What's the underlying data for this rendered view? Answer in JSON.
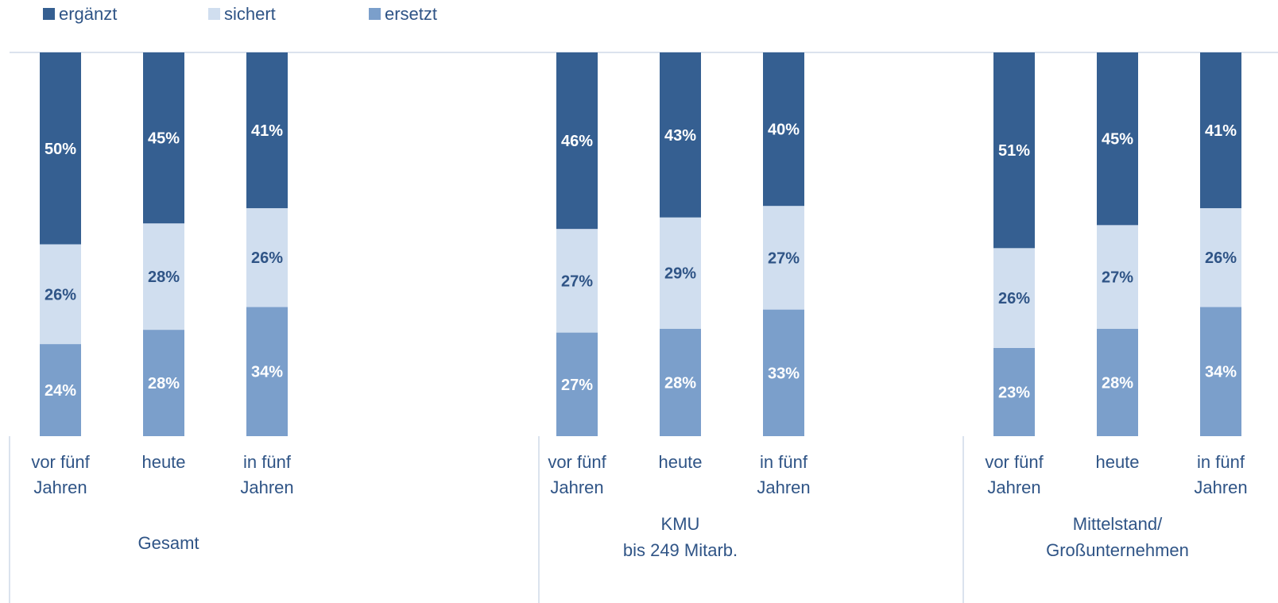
{
  "chart_data": {
    "type": "bar",
    "stacked": true,
    "legend": {
      "position": "top-left"
    },
    "grid": false,
    "ylim": [
      0,
      100
    ],
    "colors": {
      "ergänzt": "#355f91",
      "sichert": "#d0deef",
      "ersetzt": "#7b9fcb"
    },
    "label_colors": {
      "ergänzt": "#ffffff",
      "sichert": "#2f5486",
      "ersetzt": "#ffffff"
    },
    "series": [
      {
        "name": "ergänzt",
        "values": [
          50,
          45,
          41,
          46,
          43,
          40,
          51,
          45,
          41
        ]
      },
      {
        "name": "sichert",
        "values": [
          26,
          28,
          26,
          27,
          29,
          27,
          26,
          27,
          26
        ]
      },
      {
        "name": "ersetzt",
        "values": [
          24,
          28,
          34,
          27,
          28,
          33,
          23,
          28,
          34
        ]
      }
    ],
    "groups": [
      {
        "label_lines": [
          "Gesamt"
        ],
        "categories": [
          {
            "lines": [
              "vor fünf",
              "Jahren"
            ]
          },
          {
            "lines": [
              "heute"
            ]
          },
          {
            "lines": [
              "in fünf",
              "Jahren"
            ]
          }
        ]
      },
      {
        "label_lines": [
          "KMU",
          "bis 249 Mitarb."
        ],
        "categories": [
          {
            "lines": [
              "vor fünf",
              "Jahren"
            ]
          },
          {
            "lines": [
              "heute"
            ]
          },
          {
            "lines": [
              "in fünf",
              "Jahren"
            ]
          }
        ]
      },
      {
        "label_lines": [
          "Mittelstand/",
          "Großunternehmen"
        ],
        "categories": [
          {
            "lines": [
              "vor fünf",
              "Jahren"
            ]
          },
          {
            "lines": [
              "heute"
            ]
          },
          {
            "lines": [
              "in fünf",
              "Jahren"
            ]
          }
        ]
      }
    ]
  }
}
